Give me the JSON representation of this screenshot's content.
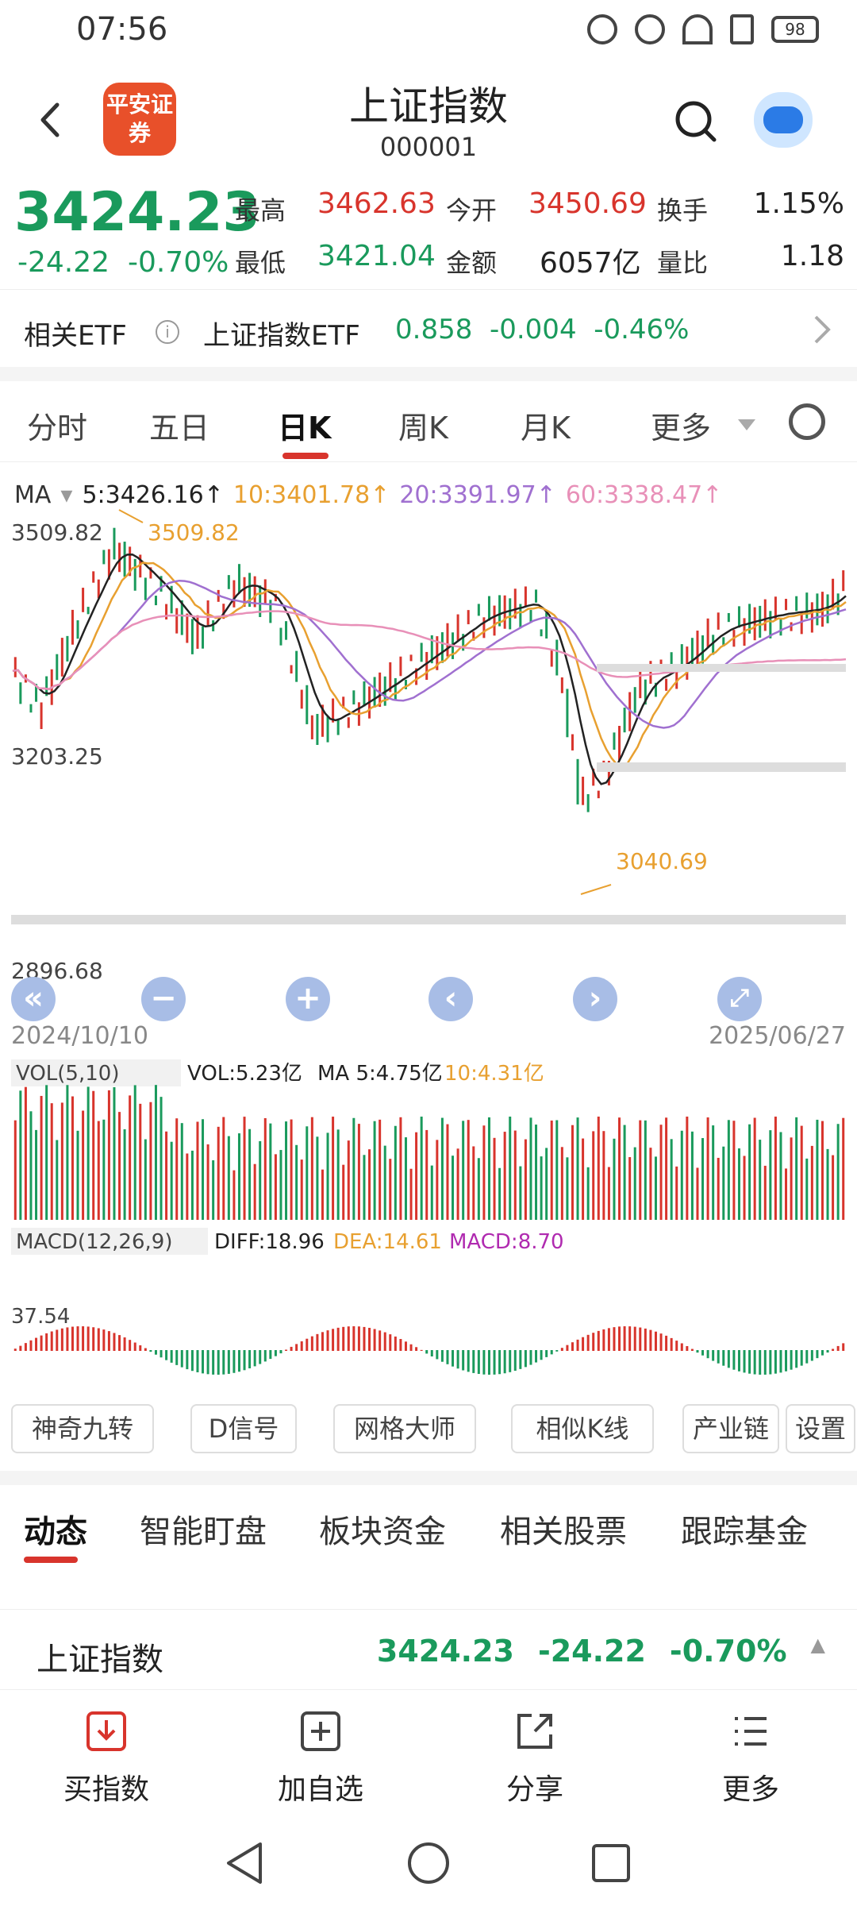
{
  "status_bar": {
    "time": "07:56",
    "battery": "98"
  },
  "header": {
    "title": "上证指数",
    "code": "000001",
    "logo_text": "平安证券"
  },
  "quote": {
    "price": "3424.23",
    "change": "-24.22",
    "change_pct": "-0.70%",
    "high_label": "最高",
    "high": "3462.63",
    "open_label": "今开",
    "open": "3450.69",
    "turnover_label": "换手",
    "turnover": "1.15%",
    "low_label": "最低",
    "low": "3421.04",
    "amount_label": "金额",
    "amount": "6057亿",
    "volratio_label": "量比",
    "volratio": "1.18"
  },
  "etf": {
    "label": "相关ETF",
    "name": "上证指数ETF",
    "price": "0.858",
    "change": "-0.004",
    "pct": "-0.46%"
  },
  "tabs": [
    "分时",
    "五日",
    "日K",
    "周K",
    "月K",
    "更多"
  ],
  "ma": {
    "label": "MA",
    "ma5": "5:3426.16↑",
    "ma10": "10:3401.78↑",
    "ma20": "20:3391.97↑",
    "ma60": "60:3338.47↑"
  },
  "chart_labels": {
    "high_axis": "3509.82",
    "high_mark": "3509.82",
    "mid_axis": "3203.25",
    "low_mark": "3040.69",
    "low_axis": "2896.68",
    "start_date": "2024/10/10",
    "end_date": "2025/06/27"
  },
  "volume": {
    "label": "VOL(5,10)",
    "vol": "VOL:5.23亿",
    "ma5": "MA 5:4.75亿",
    "ma10": "10:4.31亿"
  },
  "macd": {
    "label": "MACD(12,26,9)",
    "diff": "DIFF:18.96",
    "dea": "DEA:14.61",
    "macd": "MACD:8.70",
    "axis": "37.54"
  },
  "tools": [
    "神奇九转",
    "D信号",
    "网格大师",
    "相似K线",
    "产业链",
    "设置"
  ],
  "subtabs": [
    "动态",
    "智能盯盘",
    "板块资金",
    "相关股票",
    "跟踪基金"
  ],
  "summary": {
    "name": "上证指数",
    "price": "3424.23",
    "change": "-24.22",
    "pct": "-0.70%"
  },
  "actions": [
    "买指数",
    "加自选",
    "分享",
    "更多"
  ],
  "colors": {
    "up": "#d8342c",
    "down": "#1a9a5c",
    "ma5": "#222222",
    "ma10": "#e8a030",
    "ma20": "#a070d0",
    "ma60": "#e890b8"
  }
}
